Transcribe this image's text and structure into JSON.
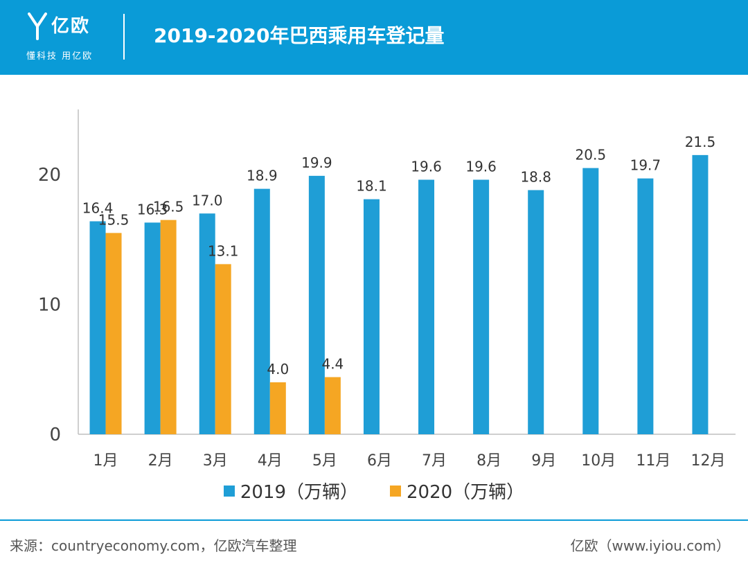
{
  "header": {
    "brand_name": "亿欧",
    "slogan": "懂科技 用亿欧",
    "title": "2019-2020年巴西乘用车登记量"
  },
  "chart_data": {
    "type": "bar",
    "categories": [
      "1月",
      "2月",
      "3月",
      "4月",
      "5月",
      "6月",
      "7月",
      "8月",
      "9月",
      "10月",
      "11月",
      "12月"
    ],
    "series": [
      {
        "name": "2019（万辆）",
        "color": "#1f9ed6",
        "values": [
          16.4,
          16.3,
          17.0,
          18.9,
          19.9,
          18.1,
          19.6,
          19.6,
          18.8,
          20.5,
          19.7,
          21.5
        ]
      },
      {
        "name": "2020（万辆）",
        "color": "#f5a623",
        "values": [
          15.5,
          16.5,
          13.1,
          4.0,
          4.4,
          null,
          null,
          null,
          null,
          null,
          null,
          null
        ]
      }
    ],
    "ylim": [
      0,
      25
    ],
    "yticks": [
      0,
      10,
      20
    ],
    "grid": false,
    "legend": "bottom",
    "xlabel": "",
    "ylabel": ""
  },
  "footer": {
    "source": "来源：countryeconomy.com，亿欧汽车整理",
    "brand": "亿欧（www.iyiou.com）"
  }
}
